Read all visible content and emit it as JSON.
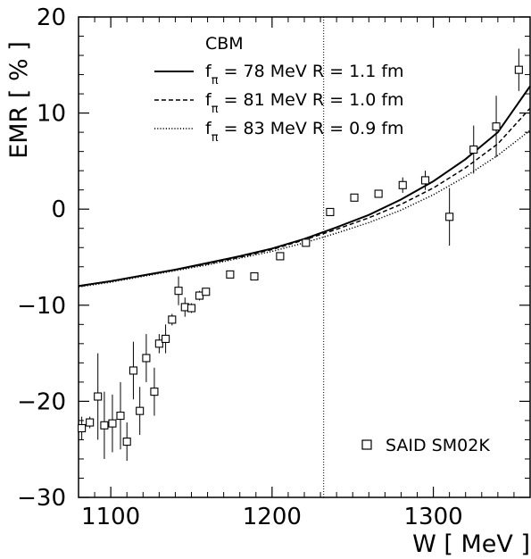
{
  "chart_data": {
    "type": "scatter",
    "title": "",
    "xlabel": "W [ MeV ]",
    "ylabel": "EMR [ % ]",
    "xlim": [
      1080,
      1360
    ],
    "ylim": [
      -30,
      20
    ],
    "x_ticks": [
      1100,
      1200,
      1300
    ],
    "y_ticks": [
      -30,
      -20,
      -10,
      0,
      10,
      20
    ],
    "x_tick_labels": [
      "1100",
      "1200",
      "1300"
    ],
    "y_tick_labels": [
      "−30",
      "−20",
      "−10",
      "0",
      "10",
      "20"
    ],
    "grid": false,
    "vertical_reference_line": {
      "x": 1232,
      "style": "dotted"
    },
    "legend": {
      "title": "CBM",
      "placement": "top-left",
      "entries": [
        {
          "label": "fπ = 78 MeV   R = 1.1 fm",
          "style": "solid"
        },
        {
          "label": "fπ = 81 MeV   R = 1.0 fm",
          "style": "dashed"
        },
        {
          "label": "fπ = 83 MeV   R = 0.9 fm",
          "style": "dotted"
        }
      ]
    },
    "series": [
      {
        "name": "fπ = 78 MeV   R = 1.1 fm",
        "kind": "line",
        "style": "solid",
        "x": [
          1080,
          1100,
          1120,
          1140,
          1160,
          1180,
          1200,
          1220,
          1240,
          1260,
          1280,
          1300,
          1320,
          1340,
          1360
        ],
        "y": [
          -8.0,
          -7.5,
          -6.9,
          -6.3,
          -5.6,
          -4.9,
          -4.1,
          -3.1,
          -1.9,
          -0.6,
          1.0,
          2.9,
          5.2,
          8.0,
          12.8
        ]
      },
      {
        "name": "fπ = 81 MeV   R = 1.0 fm",
        "kind": "line",
        "style": "dashed",
        "x": [
          1080,
          1100,
          1120,
          1140,
          1160,
          1180,
          1200,
          1220,
          1240,
          1260,
          1280,
          1300,
          1320,
          1340,
          1360
        ],
        "y": [
          -8.0,
          -7.5,
          -6.9,
          -6.3,
          -5.7,
          -5.0,
          -4.2,
          -3.2,
          -2.1,
          -0.9,
          0.5,
          2.2,
          4.3,
          6.8,
          10.5
        ]
      },
      {
        "name": "fπ = 83 MeV   R = 0.9 fm",
        "kind": "line",
        "style": "dotted",
        "x": [
          1080,
          1100,
          1120,
          1140,
          1160,
          1180,
          1200,
          1220,
          1240,
          1260,
          1280,
          1300,
          1320,
          1340,
          1360
        ],
        "y": [
          -8.1,
          -7.6,
          -7.0,
          -6.4,
          -5.8,
          -5.1,
          -4.4,
          -3.5,
          -2.5,
          -1.4,
          -0.1,
          1.5,
          3.4,
          5.6,
          8.2
        ]
      },
      {
        "name": "SAID SM02K",
        "kind": "points",
        "marker": "open-square",
        "points": [
          {
            "x": 1082,
            "y": -22.8,
            "err": 1.2
          },
          {
            "x": 1087,
            "y": -22.2,
            "err": 0.6
          },
          {
            "x": 1092,
            "y": -19.5,
            "err": 4.5
          },
          {
            "x": 1096,
            "y": -22.5,
            "err": 3.5
          },
          {
            "x": 1101,
            "y": -22.3,
            "err": 3.0
          },
          {
            "x": 1106,
            "y": -21.5,
            "err": 3.5
          },
          {
            "x": 1110,
            "y": -24.2,
            "err": 2.0
          },
          {
            "x": 1114,
            "y": -16.8,
            "err": 3.0
          },
          {
            "x": 1118,
            "y": -21.0,
            "err": 2.5
          },
          {
            "x": 1122,
            "y": -15.5,
            "err": 2.5
          },
          {
            "x": 1127,
            "y": -19.0,
            "err": 2.5
          },
          {
            "x": 1130,
            "y": -14.0,
            "err": 1.0
          },
          {
            "x": 1134,
            "y": -13.5,
            "err": 1.5
          },
          {
            "x": 1138,
            "y": -11.5,
            "err": 0.6
          },
          {
            "x": 1142,
            "y": -8.5,
            "err": 1.5
          },
          {
            "x": 1146,
            "y": -10.2,
            "err": 1.0
          },
          {
            "x": 1150,
            "y": -10.3,
            "err": 0.5
          },
          {
            "x": 1155,
            "y": -9.0,
            "err": 0.5
          },
          {
            "x": 1159,
            "y": -8.6,
            "err": 0.4
          },
          {
            "x": 1174,
            "y": -6.8,
            "err": 0.3
          },
          {
            "x": 1189,
            "y": -7.0,
            "err": 0.3
          },
          {
            "x": 1205,
            "y": -4.9,
            "err": 0.3
          },
          {
            "x": 1221,
            "y": -3.5,
            "err": 0.3
          },
          {
            "x": 1236,
            "y": -0.3,
            "err": 0.3
          },
          {
            "x": 1251,
            "y": 1.2,
            "err": 0.3
          },
          {
            "x": 1266,
            "y": 1.6,
            "err": 0.4
          },
          {
            "x": 1281,
            "y": 2.5,
            "err": 0.8
          },
          {
            "x": 1295,
            "y": 3.0,
            "err": 1.0
          },
          {
            "x": 1310,
            "y": -0.8,
            "err": 3.0
          },
          {
            "x": 1325,
            "y": 6.2,
            "err": 2.5
          },
          {
            "x": 1339,
            "y": 8.6,
            "err": 3.2
          },
          {
            "x": 1353,
            "y": 14.5,
            "err": 2.2
          }
        ]
      }
    ],
    "point_legend": {
      "label": "SAID SM02K",
      "placement": "bottom-right"
    }
  }
}
